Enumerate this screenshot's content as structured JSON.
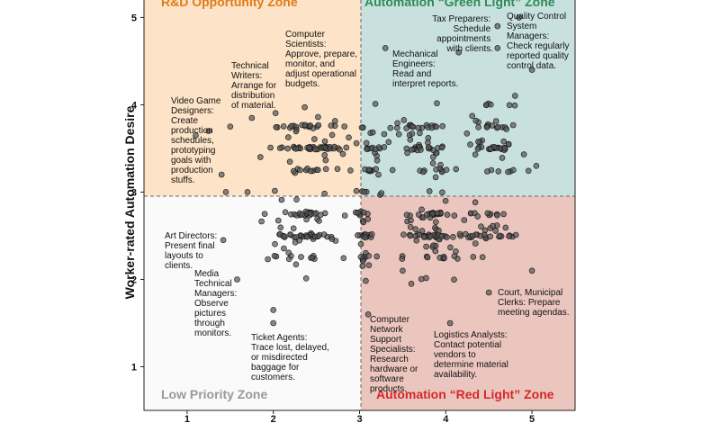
{
  "chart_data": {
    "type": "scatter",
    "xlabel": "",
    "ylabel": "Worker-rated Automation Desire",
    "xlim": [
      0.5,
      5.5
    ],
    "ylim": [
      0.5,
      5.2
    ],
    "xticks": [
      "1",
      "2",
      "3",
      "4",
      "5"
    ],
    "yticks": [
      "1",
      "2",
      "3",
      "4",
      "5"
    ],
    "thresholds": {
      "x": 3,
      "y": 3
    },
    "zones": [
      {
        "name": "R&D Opportunity Zone",
        "position": "top-left",
        "fill": "#fde3c7",
        "text_color": "#e07b1a"
      },
      {
        "name": "Automation “Green Light” Zone",
        "position": "top-right",
        "fill": "#c8e1df",
        "text_color": "#2e8b57"
      },
      {
        "name": "Low Priority Zone",
        "position": "bottom-left",
        "fill": "#fafafa",
        "text_color": "#999999"
      },
      {
        "name": "Automation “Red Light” Zone",
        "position": "bottom-right",
        "fill": "#ebc6bf",
        "text_color": "#d62728"
      }
    ],
    "annotations": [
      {
        "lines": [
          "Computer",
          "Scientists:",
          "Approve, prepare,",
          "monitor, and",
          "adjust operational",
          "budgets."
        ]
      },
      {
        "lines": [
          "Technical",
          "Writers:",
          "Arrange for",
          "distribution",
          "of material."
        ]
      },
      {
        "lines": [
          "Video Game",
          "Designers:",
          "Create",
          "production",
          "schedules,",
          "prototyping",
          "goals with",
          "production",
          "stuffs."
        ]
      },
      {
        "lines": [
          "Tax Preparers:",
          "Schedule",
          "appointments",
          "with clients."
        ]
      },
      {
        "lines": [
          "Quality Control",
          "System",
          "Managers:",
          "Check regularly",
          "reported quality",
          "control data."
        ]
      },
      {
        "lines": [
          "Mechanical",
          "Engineers:",
          "Read and",
          "interpret reports."
        ]
      },
      {
        "lines": [
          "Art Directors:",
          "Present final",
          "layouts to",
          "clients."
        ]
      },
      {
        "lines": [
          "Media",
          "Technical",
          "Managers:",
          "Observe",
          "pictures",
          "through",
          "monitors."
        ]
      },
      {
        "lines": [
          "Ticket Agents:",
          "Trace lost, delayed,",
          "or misdirected",
          "baggage for",
          "customers."
        ]
      },
      {
        "lines": [
          "Computer",
          "Network",
          "Support",
          "Specialists:",
          "Research",
          "hardware or",
          "software",
          "products."
        ]
      },
      {
        "lines": [
          "Logistics Analysts:",
          "Contact potential",
          "vendors to",
          "determine material",
          "availability."
        ]
      },
      {
        "lines": [
          "Court, Municipal",
          "Clerks: Prepare",
          "meeting agendas."
        ]
      }
    ],
    "points": {
      "outliers": [
        [
          1.1,
          3.65
        ],
        [
          1.25,
          3.7
        ],
        [
          1.4,
          3.2
        ],
        [
          1.45,
          3.0
        ],
        [
          1.5,
          3.75
        ],
        [
          1.75,
          3.85
        ],
        [
          1.85,
          3.4
        ],
        [
          1.7,
          3.0
        ],
        [
          1.9,
          2.75
        ],
        [
          1.42,
          2.45
        ],
        [
          1.58,
          2.0
        ],
        [
          2.0,
          1.65
        ],
        [
          2.0,
          1.5
        ],
        [
          3.3,
          4.65
        ],
        [
          3.1,
          1.6
        ],
        [
          4.15,
          4.6
        ],
        [
          4.6,
          4.9
        ],
        [
          4.6,
          4.65
        ],
        [
          4.85,
          5.0
        ],
        [
          5.0,
          4.4
        ],
        [
          5.05,
          3.3
        ],
        [
          5.0,
          2.1
        ],
        [
          4.5,
          1.85
        ],
        [
          3.6,
          1.95
        ],
        [
          4.05,
          1.5
        ],
        [
          3.5,
          2.1
        ]
      ],
      "clusters": [
        {
          "cx": 2.4,
          "cy": 3.55,
          "sx": 0.4,
          "sy": 0.32,
          "n": 85
        },
        {
          "cx": 2.4,
          "cy": 2.55,
          "sx": 0.4,
          "sy": 0.35,
          "n": 80
        },
        {
          "cx": 3.15,
          "cy": 3.5,
          "sx": 0.12,
          "sy": 0.45,
          "n": 30
        },
        {
          "cx": 3.05,
          "cy": 2.5,
          "sx": 0.1,
          "sy": 0.45,
          "n": 40
        },
        {
          "cx": 3.75,
          "cy": 3.55,
          "sx": 0.33,
          "sy": 0.35,
          "n": 65
        },
        {
          "cx": 3.85,
          "cy": 2.55,
          "sx": 0.35,
          "sy": 0.38,
          "n": 85
        },
        {
          "cx": 4.55,
          "cy": 3.6,
          "sx": 0.3,
          "sy": 0.38,
          "n": 60
        },
        {
          "cx": 4.45,
          "cy": 2.6,
          "sx": 0.3,
          "sy": 0.3,
          "n": 40
        }
      ]
    }
  }
}
